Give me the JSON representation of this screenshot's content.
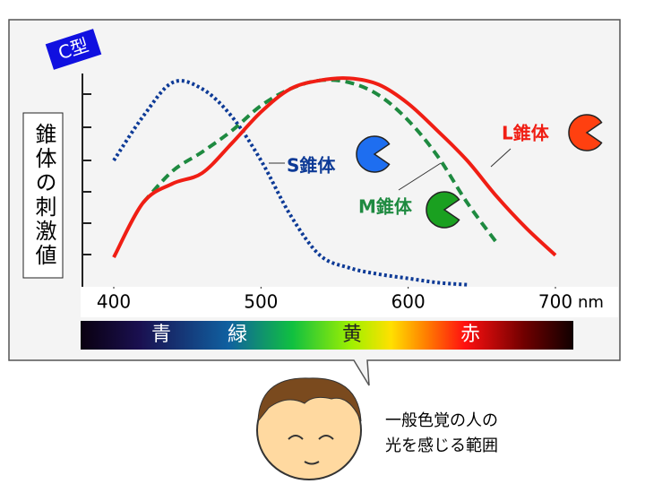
{
  "chart_data": {
    "type": "line",
    "badge": "C型",
    "y_label": "錐体の刺激値",
    "x_unit": "nm",
    "x": [
      400,
      420,
      440,
      460,
      480,
      500,
      520,
      540,
      560,
      580,
      600,
      620,
      640,
      660,
      680,
      700
    ],
    "series": [
      {
        "name": "S錐体",
        "color": "#0d3a96",
        "style": "dotted",
        "values": [
          0.6,
          0.81,
          0.97,
          0.94,
          0.81,
          0.6,
          0.34,
          0.15,
          0.09,
          0.06,
          0.04,
          0.02,
          0.01,
          null,
          null,
          null
        ]
      },
      {
        "name": "M錐体",
        "color": "#1e8a40",
        "style": "dashed",
        "values": [
          null,
          0.4,
          0.55,
          0.64,
          0.74,
          0.86,
          0.94,
          0.98,
          0.97,
          0.91,
          0.79,
          0.62,
          0.4,
          0.21,
          null,
          null
        ]
      },
      {
        "name": "L錐体",
        "color": "#f01e14",
        "style": "solid",
        "values": [
          0.14,
          0.4,
          0.49,
          0.54,
          0.68,
          0.83,
          0.94,
          0.98,
          0.99,
          0.96,
          0.87,
          0.74,
          0.6,
          0.43,
          0.28,
          0.15
        ]
      }
    ],
    "xlim": [
      400,
      700
    ],
    "xticks": [
      400,
      500,
      600,
      700
    ],
    "ylim": [
      0,
      1
    ],
    "spectrum_labels": [
      "青",
      "緑",
      "黄",
      "赤"
    ],
    "caption": [
      "一般色覚の人の",
      "光を感じる範囲"
    ]
  }
}
